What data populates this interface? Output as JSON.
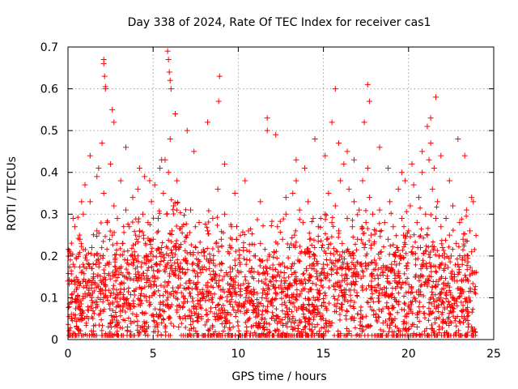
{
  "chart_data": {
    "type": "scatter",
    "title": "Day 338 of 2024, Rate Of TEC Index for receiver cas1",
    "xlabel": "GPS time / hours",
    "ylabel": "ROTI / TECUs",
    "xlim": [
      0,
      25
    ],
    "ylim": [
      0,
      0.7
    ],
    "x_ticks": [
      "0",
      "5",
      "10",
      "15",
      "20",
      "25"
    ],
    "y_ticks": [
      "0",
      "0.1",
      "0.2",
      "0.3",
      "0.4",
      "0.5",
      "0.6",
      "0.7"
    ],
    "grid": true,
    "marker": "plus",
    "series": [
      {
        "color": "#ff0000",
        "x": [
          0.0,
          0.1,
          0.2,
          0.3,
          0.4,
          0.5,
          0.6,
          0.7,
          0.8,
          0.9,
          1.0,
          1.1,
          1.2,
          1.3,
          1.4,
          1.5,
          1.6,
          1.7,
          1.8,
          1.9,
          2.0,
          2.1,
          2.2,
          2.3,
          2.4,
          2.5,
          2.6,
          2.7,
          2.8,
          2.9,
          3.0,
          3.1,
          3.2,
          3.3,
          3.4,
          3.5,
          3.6,
          3.7,
          3.8,
          3.9,
          4.0,
          4.1,
          4.2,
          4.3,
          4.4,
          4.5,
          4.6,
          4.7,
          4.8,
          4.9,
          5.0,
          5.1,
          5.2,
          5.3,
          5.4,
          5.5,
          5.6,
          5.7,
          5.8,
          5.9,
          6.0,
          6.1,
          6.2,
          6.3,
          6.4,
          6.5,
          6.6,
          6.7,
          6.8,
          6.9,
          7.0,
          7.1,
          7.2,
          7.3,
          7.4,
          7.5,
          7.6,
          7.7,
          7.8,
          7.9,
          8.0,
          8.1,
          8.2,
          8.3,
          8.4,
          8.5,
          8.6,
          8.7,
          8.8,
          8.9,
          9.0,
          9.1,
          9.2,
          9.3,
          9.4,
          9.5,
          9.6,
          9.7,
          9.8,
          9.9,
          10.0,
          10.1,
          10.2,
          10.3,
          10.4,
          10.5,
          10.6,
          10.7,
          10.8,
          10.9,
          11.0,
          11.1,
          11.2,
          11.3,
          11.4,
          11.5,
          11.6,
          11.7,
          11.8,
          11.9,
          12.0,
          12.1,
          12.2,
          12.3,
          12.4,
          12.5,
          12.6,
          12.7,
          12.8,
          12.9,
          13.0,
          13.1,
          13.2,
          13.3,
          13.4,
          13.5,
          13.6,
          13.7,
          13.8,
          13.9,
          14.0,
          14.1,
          14.2,
          14.3,
          14.4,
          14.5,
          14.6,
          14.7,
          14.8,
          14.9,
          15.0,
          15.1,
          15.2,
          15.3,
          15.4,
          15.5,
          15.6,
          15.7,
          15.8,
          15.9,
          16.0,
          16.1,
          16.2,
          16.3,
          16.4,
          16.5,
          16.6,
          16.7,
          16.8,
          16.9,
          17.0,
          17.1,
          17.2,
          17.3,
          17.4,
          17.5,
          17.6,
          17.7,
          17.8,
          17.9,
          18.0,
          18.1,
          18.2,
          18.3,
          18.4,
          18.5,
          18.6,
          18.7,
          18.8,
          18.9,
          19.0,
          19.1,
          19.2,
          19.3,
          19.4,
          19.5,
          19.6,
          19.7,
          19.8,
          19.9,
          20.0,
          20.1,
          20.2,
          20.3,
          20.4,
          20.5,
          20.6,
          20.7,
          20.8,
          20.9,
          21.0,
          21.1,
          21.2,
          21.3,
          21.4,
          21.5,
          21.6,
          21.7,
          21.8,
          21.9,
          22.0,
          22.1,
          22.2,
          22.3,
          22.4,
          22.5,
          22.6,
          22.7,
          22.8,
          22.9,
          23.0,
          23.1,
          23.2,
          23.3,
          23.4,
          23.5,
          23.6,
          23.7,
          23.8,
          23.9,
          2.1,
          2.1,
          2.15,
          2.2,
          2.2,
          5.85,
          5.9,
          5.95,
          6.0,
          6.05,
          8.9,
          8.85,
          11.7,
          11.7,
          15.5,
          15.7,
          17.6,
          17.7,
          21.3,
          21.6,
          0.3,
          0.8,
          1.3,
          1.7,
          2.6,
          2.7,
          3.4,
          4.2,
          4.8,
          5.5,
          6.3,
          7.0,
          7.4,
          8.2,
          9.2,
          9.8,
          10.4,
          11.3,
          12.2,
          12.8,
          13.4,
          13.9,
          14.5,
          15.1,
          15.9,
          16.4,
          16.8,
          17.4,
          18.3,
          18.8,
          19.6,
          20.2,
          20.8,
          21.1,
          21.9,
          22.4,
          22.9,
          23.3,
          23.7,
          1.0,
          0.5,
          1.5,
          2.5,
          3.5,
          4.5,
          5.5,
          6.5,
          7.5,
          8.5,
          9.5,
          10.5,
          11.5,
          12.5,
          13.5,
          14.5,
          15.5,
          16.5,
          17.5,
          18.5,
          19.5,
          20.5,
          21.5,
          22.5,
          23.5,
          0.2,
          1.2,
          3.2,
          5.2,
          7.2,
          9.2,
          11.2,
          13.2,
          15.2,
          17.2,
          19.2,
          21.2,
          23.2,
          6.9,
          12.9,
          18.9
        ],
        "y": [
          0.14,
          0.21,
          0.05,
          0.18,
          0.27,
          0.12,
          0.08,
          0.24,
          0.16,
          0.3,
          0.11,
          0.19,
          0.07,
          0.33,
          0.22,
          0.15,
          0.09,
          0.26,
          0.41,
          0.2,
          0.47,
          0.35,
          0.13,
          0.28,
          0.18,
          0.42,
          0.25,
          0.32,
          0.1,
          0.29,
          0.17,
          0.38,
          0.23,
          0.12,
          0.31,
          0.19,
          0.27,
          0.08,
          0.34,
          0.21,
          0.15,
          0.36,
          0.26,
          0.11,
          0.3,
          0.39,
          0.2,
          0.28,
          0.14,
          0.33,
          0.24,
          0.37,
          0.18,
          0.29,
          0.41,
          0.22,
          0.35,
          0.43,
          0.3,
          0.4,
          0.48,
          0.26,
          0.32,
          0.17,
          0.38,
          0.22,
          0.13,
          0.27,
          0.09,
          0.19,
          0.25,
          0.14,
          0.31,
          0.18,
          0.08,
          0.22,
          0.12,
          0.28,
          0.16,
          0.1,
          0.2,
          0.13,
          0.26,
          0.17,
          0.11,
          0.29,
          0.15,
          0.23,
          0.36,
          0.18,
          0.24,
          0.12,
          0.3,
          0.16,
          0.21,
          0.09,
          0.27,
          0.14,
          0.19,
          0.24,
          0.13,
          0.18,
          0.08,
          0.22,
          0.15,
          0.11,
          0.26,
          0.09,
          0.17,
          0.12,
          0.2,
          0.08,
          0.14,
          0.23,
          0.1,
          0.16,
          0.07,
          0.19,
          0.12,
          0.09,
          0.15,
          0.21,
          0.11,
          0.27,
          0.18,
          0.13,
          0.24,
          0.16,
          0.3,
          0.12,
          0.22,
          0.17,
          0.35,
          0.25,
          0.38,
          0.19,
          0.31,
          0.14,
          0.28,
          0.21,
          0.17,
          0.33,
          0.24,
          0.12,
          0.29,
          0.2,
          0.15,
          0.27,
          0.11,
          0.22,
          0.18,
          0.3,
          0.24,
          0.35,
          0.19,
          0.28,
          0.13,
          0.32,
          0.21,
          0.26,
          0.38,
          0.23,
          0.42,
          0.17,
          0.29,
          0.36,
          0.2,
          0.27,
          0.33,
          0.15,
          0.24,
          0.31,
          0.18,
          0.38,
          0.22,
          0.28,
          0.41,
          0.34,
          0.25,
          0.3,
          0.19,
          0.26,
          0.13,
          0.31,
          0.21,
          0.16,
          0.28,
          0.11,
          0.24,
          0.33,
          0.18,
          0.27,
          0.14,
          0.22,
          0.36,
          0.2,
          0.29,
          0.25,
          0.38,
          0.17,
          0.26,
          0.32,
          0.21,
          0.37,
          0.15,
          0.28,
          0.34,
          0.22,
          0.4,
          0.18,
          0.3,
          0.25,
          0.43,
          0.47,
          0.36,
          0.41,
          0.29,
          0.33,
          0.2,
          0.27,
          0.22,
          0.17,
          0.29,
          0.13,
          0.25,
          0.2,
          0.32,
          0.15,
          0.23,
          0.18,
          0.28,
          0.12,
          0.24,
          0.19,
          0.31,
          0.14,
          0.26,
          0.21,
          0.33,
          0.16,
          0.67,
          0.66,
          0.63,
          0.605,
          0.6,
          0.69,
          0.67,
          0.64,
          0.62,
          0.6,
          0.63,
          0.57,
          0.53,
          0.5,
          0.52,
          0.6,
          0.61,
          0.57,
          0.53,
          0.58,
          0.29,
          0.33,
          0.44,
          0.39,
          0.55,
          0.52,
          0.46,
          0.41,
          0.38,
          0.43,
          0.54,
          0.5,
          0.45,
          0.52,
          0.42,
          0.35,
          0.38,
          0.33,
          0.49,
          0.34,
          0.43,
          0.41,
          0.48,
          0.44,
          0.47,
          0.45,
          0.43,
          0.52,
          0.46,
          0.41,
          0.4,
          0.42,
          0.45,
          0.51,
          0.44,
          0.38,
          0.48,
          0.44,
          0.34,
          0.37,
          0.03,
          0.02,
          0.04,
          0.03,
          0.02,
          0.04,
          0.03,
          0.02,
          0.03,
          0.04,
          0.02,
          0.03,
          0.04,
          0.02,
          0.03,
          0.04,
          0.02,
          0.03,
          0.04,
          0.02,
          0.03,
          0.02,
          0.04,
          0.03,
          0.06,
          0.05,
          0.07,
          0.06,
          0.05,
          0.07,
          0.06,
          0.05,
          0.07,
          0.06,
          0.05,
          0.06,
          0.07,
          0.05,
          0.06,
          0.05
        ]
      }
    ]
  }
}
